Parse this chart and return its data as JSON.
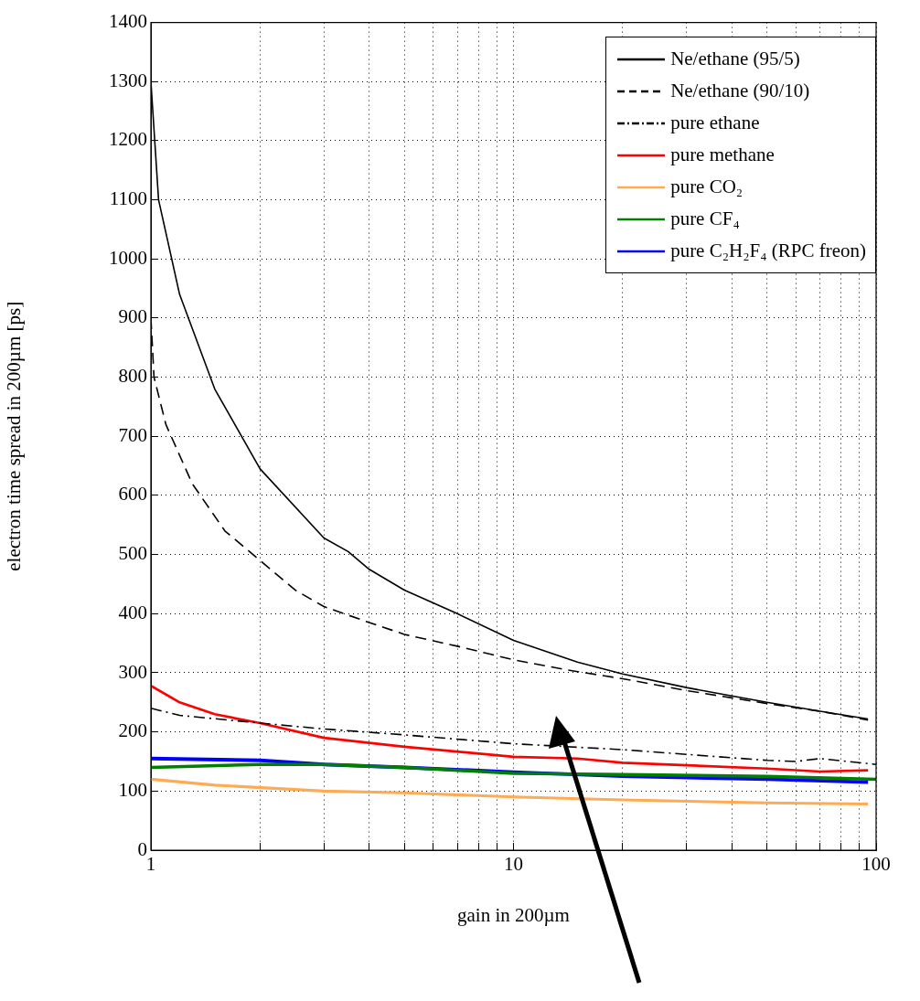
{
  "chart_data": {
    "type": "line",
    "xlabel": "gain in 200µm",
    "ylabel": "electron time spread in 200µm [ps]",
    "log": "x",
    "grid": true,
    "legend": "top right",
    "marker": "none",
    "xlim": [
      1,
      100
    ],
    "xticks": [
      1,
      {
        "value": 2,
        "label": null
      },
      {
        "value": 3,
        "label": null
      },
      {
        "value": 4,
        "label": null
      },
      {
        "value": 5,
        "label": null
      },
      {
        "value": 6,
        "label": null
      },
      {
        "value": 7,
        "label": null
      },
      {
        "value": 8,
        "label": null
      },
      {
        "value": 9,
        "label": null
      },
      10,
      {
        "value": 20,
        "label": null
      },
      {
        "value": 30,
        "label": null
      },
      {
        "value": 40,
        "label": null
      },
      {
        "value": 50,
        "label": null
      },
      {
        "value": 60,
        "label": null
      },
      {
        "value": 70,
        "label": null
      },
      {
        "value": 80,
        "label": null
      },
      {
        "value": 90,
        "label": null
      },
      100
    ],
    "ylim": [
      0,
      1400
    ],
    "yticks": [
      0,
      100,
      200,
      300,
      400,
      500,
      600,
      700,
      800,
      900,
      1000,
      1100,
      1200,
      1300,
      1400
    ],
    "series": [
      {
        "name": "Ne/ethane (95/5)",
        "color": "#000000",
        "line_style": "solid",
        "x": [
          1,
          1.05,
          1.2,
          1.5,
          2,
          3,
          3.5,
          4,
          5,
          7,
          10,
          15,
          20,
          30,
          50,
          70,
          95
        ],
        "values": [
          1300,
          1100,
          940,
          780,
          645,
          528,
          505,
          475,
          440,
          400,
          355,
          318,
          298,
          275,
          250,
          235,
          222
        ]
      },
      {
        "name": "Ne/ethane  (90/10)",
        "color": "#000000",
        "line_style": "dashed",
        "x": [
          1,
          1.02,
          1.1,
          1.3,
          1.6,
          2,
          2.5,
          3,
          4,
          5,
          7,
          10,
          14,
          20,
          30,
          50,
          70,
          95
        ],
        "values": [
          900,
          800,
          720,
          620,
          540,
          490,
          440,
          412,
          385,
          365,
          345,
          322,
          305,
          290,
          270,
          248,
          235,
          220
        ]
      },
      {
        "name": "pure ethane",
        "color": "#000000",
        "line_style": "dashdot",
        "x": [
          1,
          1.2,
          2,
          3,
          5,
          10,
          20,
          30,
          50,
          60,
          70,
          100
        ],
        "values": [
          240,
          228,
          215,
          205,
          195,
          180,
          170,
          162,
          152,
          150,
          155,
          145
        ]
      },
      {
        "name": "pure methane",
        "color": "#ff0000",
        "line_style": "solid",
        "x": [
          1,
          1.2,
          1.5,
          2,
          3,
          5,
          10,
          15,
          20,
          50,
          70,
          95
        ],
        "values": [
          278,
          250,
          230,
          215,
          190,
          175,
          158,
          155,
          148,
          138,
          133,
          135
        ]
      },
      {
        "name": "pure CO₂",
        "color": "#ffaa55",
        "line_style": "solid",
        "x": [
          1,
          1.5,
          3,
          5,
          10,
          20,
          50,
          95
        ],
        "values": [
          120,
          110,
          100,
          97,
          90,
          85,
          80,
          78
        ]
      },
      {
        "name": "pure CF₄",
        "color": "#008000",
        "line_style": "solid",
        "x": [
          1,
          2,
          3,
          5,
          10,
          20,
          50,
          100
        ],
        "values": [
          140,
          145,
          145,
          140,
          130,
          128,
          125,
          120
        ]
      },
      {
        "name": "pure C₂H₂F₄ (RPC freon)",
        "color": "#0000ff",
        "line_style": "solid",
        "x": [
          1,
          2,
          3,
          5,
          10,
          20,
          50,
          95
        ],
        "values": [
          155,
          152,
          145,
          140,
          132,
          125,
          120,
          115
        ]
      }
    ]
  }
}
